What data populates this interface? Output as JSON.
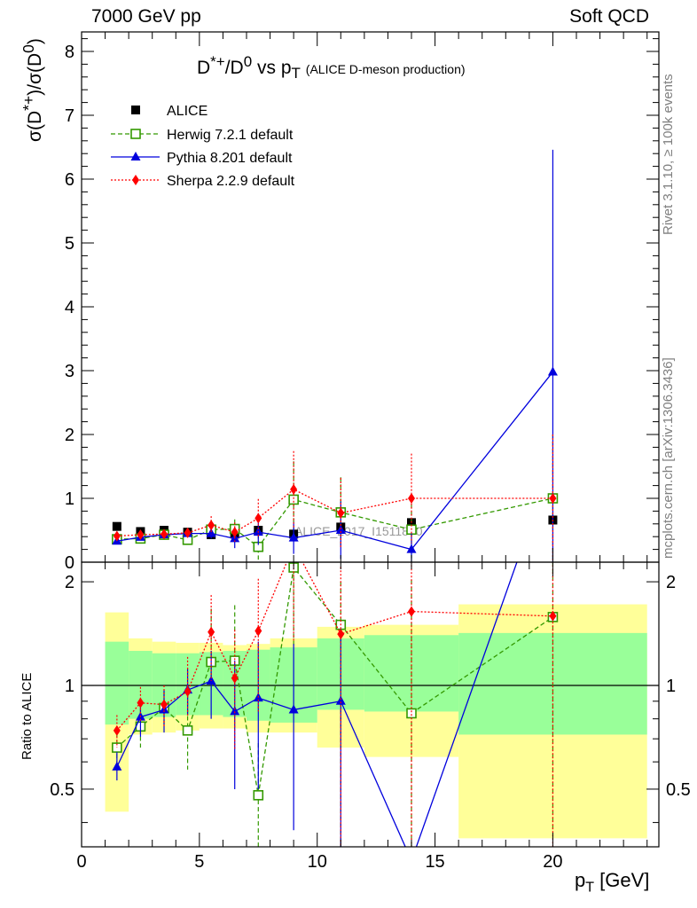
{
  "header": {
    "left": "7000 GeV pp",
    "right": "Soft QCD"
  },
  "side_labels": {
    "rivet": "Rivet 3.1.10, ≥ 100k events",
    "site": "mcplots.cern.ch [arXiv:1306.3436]"
  },
  "watermark": "ALICE_2017_I1511870",
  "chart_data": {
    "type": "scatter",
    "title": "D*+/D0 vs pT (ALICE D-meson production)",
    "ylabel": "σ(D*+)/σ(D0)",
    "xlabel": "pT [GeV]",
    "ratio_ylabel": "Ratio to ALICE",
    "xlim": [
      0,
      24.5
    ],
    "ylim": [
      0,
      8.3
    ],
    "ratio_ylim": [
      0.34,
      2.28
    ],
    "ratio_scale": "log",
    "xticks": [
      0,
      5,
      10,
      15,
      20
    ],
    "yticks": [
      0,
      1,
      2,
      3,
      4,
      5,
      6,
      7,
      8
    ],
    "ratio_ticks": [
      0.5,
      1,
      2
    ],
    "legend_position": "top-left",
    "bins": [
      [
        1,
        2
      ],
      [
        2,
        3
      ],
      [
        3,
        4
      ],
      [
        4,
        5
      ],
      [
        5,
        6
      ],
      [
        6,
        7
      ],
      [
        7,
        8
      ],
      [
        8,
        10
      ],
      [
        10,
        12
      ],
      [
        12,
        16
      ],
      [
        16,
        24
      ]
    ],
    "series": [
      {
        "name": "ALICE",
        "color": "#000000",
        "marker": "square",
        "x": [
          1.5,
          2.5,
          3.5,
          4.5,
          5.5,
          6.5,
          7.5,
          9,
          11,
          14,
          20
        ],
        "y": [
          0.56,
          0.48,
          0.5,
          0.47,
          0.43,
          0.44,
          0.5,
          0.44,
          0.55,
          0.62,
          0.66
        ]
      },
      {
        "name": "Herwig 7.2.1 default",
        "color": "#339900",
        "marker": "open-square",
        "x": [
          1.5,
          2.5,
          3.5,
          4.5,
          5.5,
          6.5,
          7.5,
          9,
          11,
          14,
          20
        ],
        "y": [
          0.36,
          0.37,
          0.43,
          0.35,
          0.51,
          0.52,
          0.24,
          0.98,
          0.78,
          0.51,
          1.0
        ],
        "yerr": [
          0.03,
          0.03,
          0.04,
          0.06,
          0.1,
          0.15,
          0.2,
          0.6,
          0.55,
          0.51,
          1.0
        ]
      },
      {
        "name": "Pythia 8.201 default",
        "color": "#0000dd",
        "marker": "triangle",
        "x": [
          1.5,
          2.5,
          3.5,
          4.5,
          5.5,
          6.5,
          7.5,
          9,
          11,
          14,
          20
        ],
        "y": [
          0.33,
          0.39,
          0.43,
          0.45,
          0.45,
          0.37,
          0.47,
          0.38,
          0.5,
          0.2,
          2.98
        ],
        "yerr": [
          0.03,
          0.04,
          0.05,
          0.06,
          0.08,
          0.15,
          0.2,
          0.25,
          0.45,
          0.25,
          3.48
        ]
      },
      {
        "name": "Sherpa 2.2.9 default",
        "color": "#ff0000",
        "marker": "diamond",
        "x": [
          1.5,
          2.5,
          3.5,
          4.5,
          5.5,
          6.5,
          7.5,
          9,
          11,
          14,
          20
        ],
        "y": [
          0.41,
          0.43,
          0.44,
          0.46,
          0.58,
          0.47,
          0.69,
          1.14,
          0.77,
          1.0,
          1.0
        ],
        "yerr": [
          0.04,
          0.05,
          0.06,
          0.07,
          0.14,
          0.15,
          0.3,
          0.6,
          0.55,
          0.7,
          1.0
        ]
      }
    ],
    "ratio_band": {
      "inner_color": "#99ff99",
      "outer_color": "#ffff99",
      "bins": [
        [
          1,
          2
        ],
        [
          2,
          3
        ],
        [
          3,
          4
        ],
        [
          4,
          5
        ],
        [
          5,
          6
        ],
        [
          6,
          7
        ],
        [
          7,
          8
        ],
        [
          8,
          10
        ],
        [
          10,
          12
        ],
        [
          12,
          16
        ],
        [
          16,
          24
        ]
      ],
      "inner_lo": [
        0.77,
        0.8,
        0.81,
        0.82,
        0.82,
        0.81,
        0.79,
        0.78,
        0.85,
        0.84,
        0.72
      ],
      "inner_hi": [
        1.34,
        1.26,
        1.24,
        1.24,
        1.25,
        1.26,
        1.27,
        1.29,
        1.37,
        1.4,
        1.42
      ],
      "outer_lo": [
        0.43,
        0.72,
        0.73,
        0.74,
        0.75,
        0.75,
        0.73,
        0.73,
        0.66,
        0.62,
        0.36
      ],
      "outer_hi": [
        1.63,
        1.37,
        1.34,
        1.33,
        1.33,
        1.31,
        1.32,
        1.37,
        1.48,
        1.5,
        1.72
      ]
    },
    "ratio_series": [
      {
        "name": "Herwig 7.2.1 default",
        "color": "#339900",
        "y": [
          0.66,
          0.76,
          0.86,
          0.74,
          1.17,
          1.18,
          0.48,
          2.2,
          1.5,
          0.83,
          1.58
        ],
        "err_lo": [
          0.07,
          0.1,
          0.1,
          0.17,
          0.2,
          0.2,
          0.2,
          0.9,
          1.2,
          0.5,
          1.2
        ],
        "err_hi": [
          0.07,
          0.1,
          0.1,
          0.2,
          0.5,
          0.53,
          0.2,
          0.3,
          0.5,
          1.2,
          0.7
        ]
      },
      {
        "name": "Pythia 8.201 default",
        "color": "#0000dd",
        "y": [
          0.58,
          0.81,
          0.85,
          0.97,
          1.03,
          0.84,
          0.92,
          0.85,
          0.9,
          0.31,
          4.5
        ],
        "err_lo": [
          0.05,
          0.1,
          0.12,
          0.15,
          0.23,
          0.34,
          0.42,
          0.47,
          0.56,
          0.0,
          0.0
        ],
        "err_hi": [
          0.06,
          0.11,
          0.12,
          0.15,
          0.23,
          0.34,
          0.42,
          0.47,
          0.56,
          0.0,
          0.0
        ]
      },
      {
        "name": "Sherpa 2.2.9 default",
        "color": "#ff0000",
        "y": [
          0.74,
          0.89,
          0.88,
          0.96,
          1.43,
          1.05,
          1.44,
          2.55,
          1.41,
          1.64,
          1.59
        ],
        "err_lo": [
          0.08,
          0.1,
          0.12,
          0.15,
          0.4,
          0.4,
          0.6,
          1.2,
          1.07,
          1.4,
          1.3
        ],
        "err_hi": [
          0.08,
          0.1,
          0.12,
          0.25,
          0.4,
          0.4,
          0.6,
          0.3,
          0.8,
          1.0,
          0.7
        ]
      }
    ]
  }
}
